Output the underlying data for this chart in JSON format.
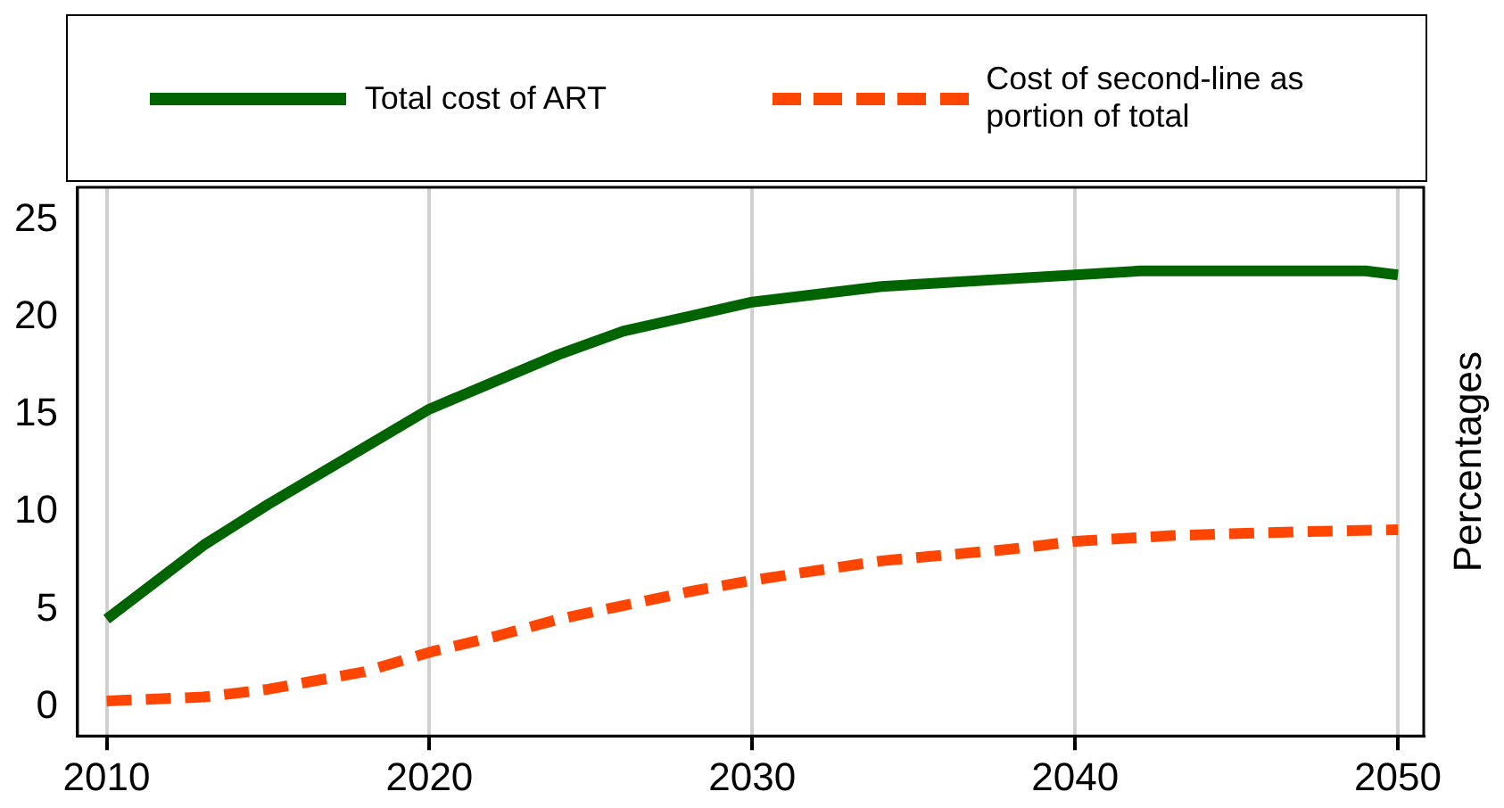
{
  "chart_data": {
    "type": "line",
    "ylabel": "Percentages",
    "xlim": [
      2009.1,
      2050.8
    ],
    "xticks": [
      2010,
      2020,
      2030,
      2040,
      2050
    ],
    "ylim": [
      -1.5,
      26.7
    ],
    "yticks": [
      0,
      5,
      10,
      15,
      20,
      25
    ],
    "grid": "x",
    "legend": "top",
    "marker": "none",
    "series": [
      {
        "name": "Total cost of ART",
        "color": "#006400",
        "line_style": "solid",
        "x": [
          2010,
          2013,
          2015,
          2020,
          2024,
          2026,
          2030,
          2034,
          2040,
          2042,
          2049,
          2050
        ],
        "values": [
          4.5,
          8.3,
          10.4,
          15.3,
          18.1,
          19.3,
          20.8,
          21.6,
          22.2,
          22.4,
          22.4,
          22.2
        ]
      },
      {
        "name": "Cost of second-line as portion of total",
        "color": "#ff4500",
        "line_style": "dashed",
        "x": [
          2010,
          2013,
          2015,
          2018,
          2020,
          2022,
          2024,
          2026,
          2028,
          2030,
          2034,
          2038,
          2040,
          2043,
          2047,
          2050
        ],
        "values": [
          0.3,
          0.5,
          0.9,
          1.8,
          2.8,
          3.6,
          4.5,
          5.2,
          5.9,
          6.5,
          7.5,
          8.1,
          8.5,
          8.8,
          9.0,
          9.1
        ]
      }
    ]
  }
}
